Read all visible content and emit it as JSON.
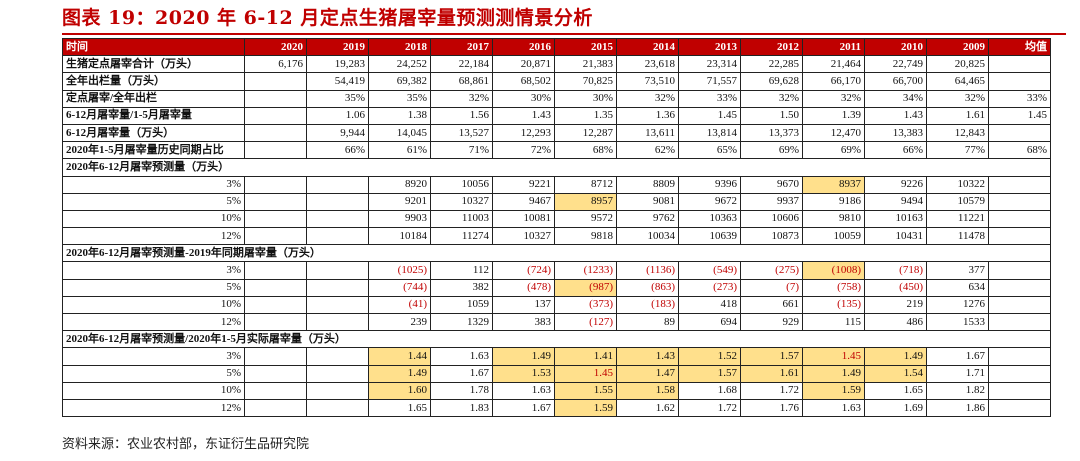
{
  "title": "图表 19：2020 年 6-12 月定点生猪屠宰量预测测情景分析",
  "source": "资料来源：农业农村部，东证衍生品研究院",
  "colors": {
    "accent": "#c00000",
    "highlight": "#ffe08c",
    "negative": "#c00000"
  },
  "header": [
    "时间",
    "2020",
    "2019",
    "2018",
    "2017",
    "2016",
    "2015",
    "2014",
    "2013",
    "2012",
    "2011",
    "2010",
    "2009",
    "均值"
  ],
  "rows": [
    {
      "label": "生猪定点屠宰合计（万头）",
      "cells": [
        "6,176",
        "19,283",
        "24,252",
        "22,184",
        "20,871",
        "21,383",
        "23,618",
        "23,314",
        "22,285",
        "21,464",
        "22,749",
        "20,825",
        ""
      ]
    },
    {
      "label": "全年出栏量（万头）",
      "cells": [
        "",
        "54,419",
        "69,382",
        "68,861",
        "68,502",
        "70,825",
        "73,510",
        "71,557",
        "69,628",
        "66,170",
        "66,700",
        "64,465",
        ""
      ]
    },
    {
      "label": "定点屠宰/全年出栏",
      "cells": [
        "",
        "35%",
        "35%",
        "32%",
        "30%",
        "30%",
        "32%",
        "33%",
        "32%",
        "32%",
        "34%",
        "32%",
        "33%"
      ]
    },
    {
      "label": "6-12月屠宰量/1-5月屠宰量",
      "cells": [
        "",
        "1.06",
        "1.38",
        "1.56",
        "1.43",
        "1.35",
        "1.36",
        "1.45",
        "1.50",
        "1.39",
        "1.43",
        "1.61",
        "1.45"
      ]
    },
    {
      "label": "6-12月屠宰量（万头）",
      "cells": [
        "",
        "9,944",
        "14,045",
        "13,527",
        "12,293",
        "12,287",
        "13,611",
        "13,814",
        "13,373",
        "12,470",
        "13,383",
        "12,843",
        ""
      ]
    },
    {
      "label": "2020年1-5月屠宰量历史同期占比",
      "cells": [
        "",
        "66%",
        "61%",
        "71%",
        "72%",
        "68%",
        "62%",
        "65%",
        "69%",
        "69%",
        "66%",
        "77%",
        "68%"
      ]
    }
  ],
  "sections": [
    {
      "title": "2020年6-12月屠宰预测量（万头）",
      "rows": [
        {
          "label": "3%",
          "cells": [
            "",
            "",
            "8920",
            "10056",
            "9221",
            "8712",
            "8809",
            "9396",
            "9670",
            "8937",
            "9226",
            "10322",
            ""
          ],
          "hl": [
            9
          ],
          "neg": []
        },
        {
          "label": "5%",
          "cells": [
            "",
            "",
            "9201",
            "10327",
            "9467",
            "8957",
            "9081",
            "9672",
            "9937",
            "9186",
            "9494",
            "10579",
            ""
          ],
          "hl": [
            5
          ],
          "neg": []
        },
        {
          "label": "10%",
          "cells": [
            "",
            "",
            "9903",
            "11003",
            "10081",
            "9572",
            "9762",
            "10363",
            "10606",
            "9810",
            "10163",
            "11221",
            ""
          ],
          "hl": [],
          "neg": []
        },
        {
          "label": "12%",
          "cells": [
            "",
            "",
            "10184",
            "11274",
            "10327",
            "9818",
            "10034",
            "10639",
            "10873",
            "10059",
            "10431",
            "11478",
            ""
          ],
          "hl": [],
          "neg": []
        }
      ]
    },
    {
      "title": "2020年6-12月屠宰预测量-2019年同期屠宰量（万头）",
      "rows": [
        {
          "label": "3%",
          "cells": [
            "",
            "",
            "(1025)",
            "112",
            "(724)",
            "(1233)",
            "(1136)",
            "(549)",
            "(275)",
            "(1008)",
            "(718)",
            "377",
            ""
          ],
          "hl": [
            9
          ],
          "neg": [
            2,
            4,
            5,
            6,
            7,
            8,
            9,
            10
          ]
        },
        {
          "label": "5%",
          "cells": [
            "",
            "",
            "(744)",
            "382",
            "(478)",
            "(987)",
            "(863)",
            "(273)",
            "(7)",
            "(758)",
            "(450)",
            "634",
            ""
          ],
          "hl": [
            5
          ],
          "neg": [
            2,
            4,
            5,
            6,
            7,
            8,
            9,
            10
          ]
        },
        {
          "label": "10%",
          "cells": [
            "",
            "",
            "(41)",
            "1059",
            "137",
            "(373)",
            "(183)",
            "418",
            "661",
            "(135)",
            "219",
            "1276",
            ""
          ],
          "hl": [],
          "neg": [
            2,
            5,
            6,
            9
          ]
        },
        {
          "label": "12%",
          "cells": [
            "",
            "",
            "239",
            "1329",
            "383",
            "(127)",
            "89",
            "694",
            "929",
            "115",
            "486",
            "1533",
            ""
          ],
          "hl": [],
          "neg": [
            5
          ]
        }
      ]
    },
    {
      "title": "2020年6-12月屠宰预测量/2020年1-5月实际屠宰量（万头）",
      "rows": [
        {
          "label": "3%",
          "cells": [
            "",
            "",
            "1.44",
            "1.63",
            "1.49",
            "1.41",
            "1.43",
            "1.52",
            "1.57",
            "1.45",
            "1.49",
            "1.67",
            ""
          ],
          "hl": [
            2,
            4,
            5,
            6,
            7,
            8,
            9,
            10
          ],
          "neg": [
            9
          ]
        },
        {
          "label": "5%",
          "cells": [
            "",
            "",
            "1.49",
            "1.67",
            "1.53",
            "1.45",
            "1.47",
            "1.57",
            "1.61",
            "1.49",
            "1.54",
            "1.71",
            ""
          ],
          "hl": [
            2,
            4,
            5,
            6,
            7,
            8,
            9,
            10
          ],
          "neg": [
            5
          ]
        },
        {
          "label": "10%",
          "cells": [
            "",
            "",
            "1.60",
            "1.78",
            "1.63",
            "1.55",
            "1.58",
            "1.68",
            "1.72",
            "1.59",
            "1.65",
            "1.82",
            ""
          ],
          "hl": [
            2,
            5,
            6,
            9
          ],
          "neg": []
        },
        {
          "label": "12%",
          "cells": [
            "",
            "",
            "1.65",
            "1.83",
            "1.67",
            "1.59",
            "1.62",
            "1.72",
            "1.76",
            "1.63",
            "1.69",
            "1.86",
            ""
          ],
          "hl": [
            5
          ],
          "neg": []
        }
      ]
    }
  ]
}
